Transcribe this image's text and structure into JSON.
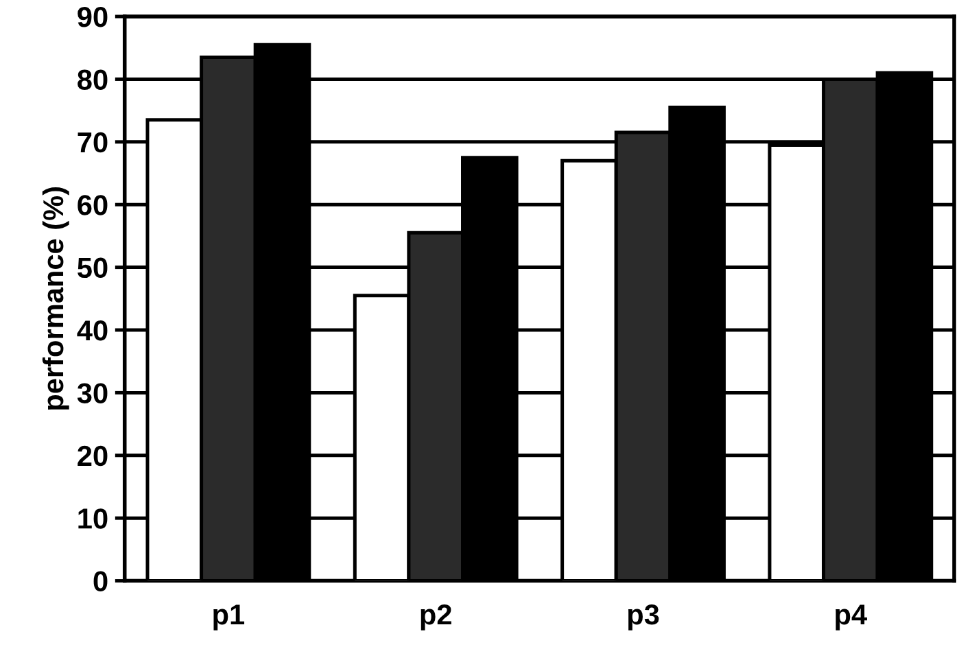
{
  "chart_data": {
    "type": "bar",
    "ylabel": "performance (%)",
    "categories": [
      "p1",
      "p2",
      "p3",
      "p4"
    ],
    "series": [
      {
        "color": "#ffffff",
        "values": [
          73.5,
          45.5,
          67,
          69.5
        ]
      },
      {
        "color": "#2b2b2b",
        "values": [
          83.5,
          55.5,
          71.5,
          80
        ]
      },
      {
        "color": "#000000",
        "values": [
          85.5,
          67.5,
          75.5,
          81
        ]
      }
    ],
    "ylim": [
      0,
      90
    ],
    "yticks": [
      0,
      10,
      20,
      30,
      40,
      50,
      60,
      70,
      80,
      90
    ],
    "grid": "y",
    "legend": false
  }
}
